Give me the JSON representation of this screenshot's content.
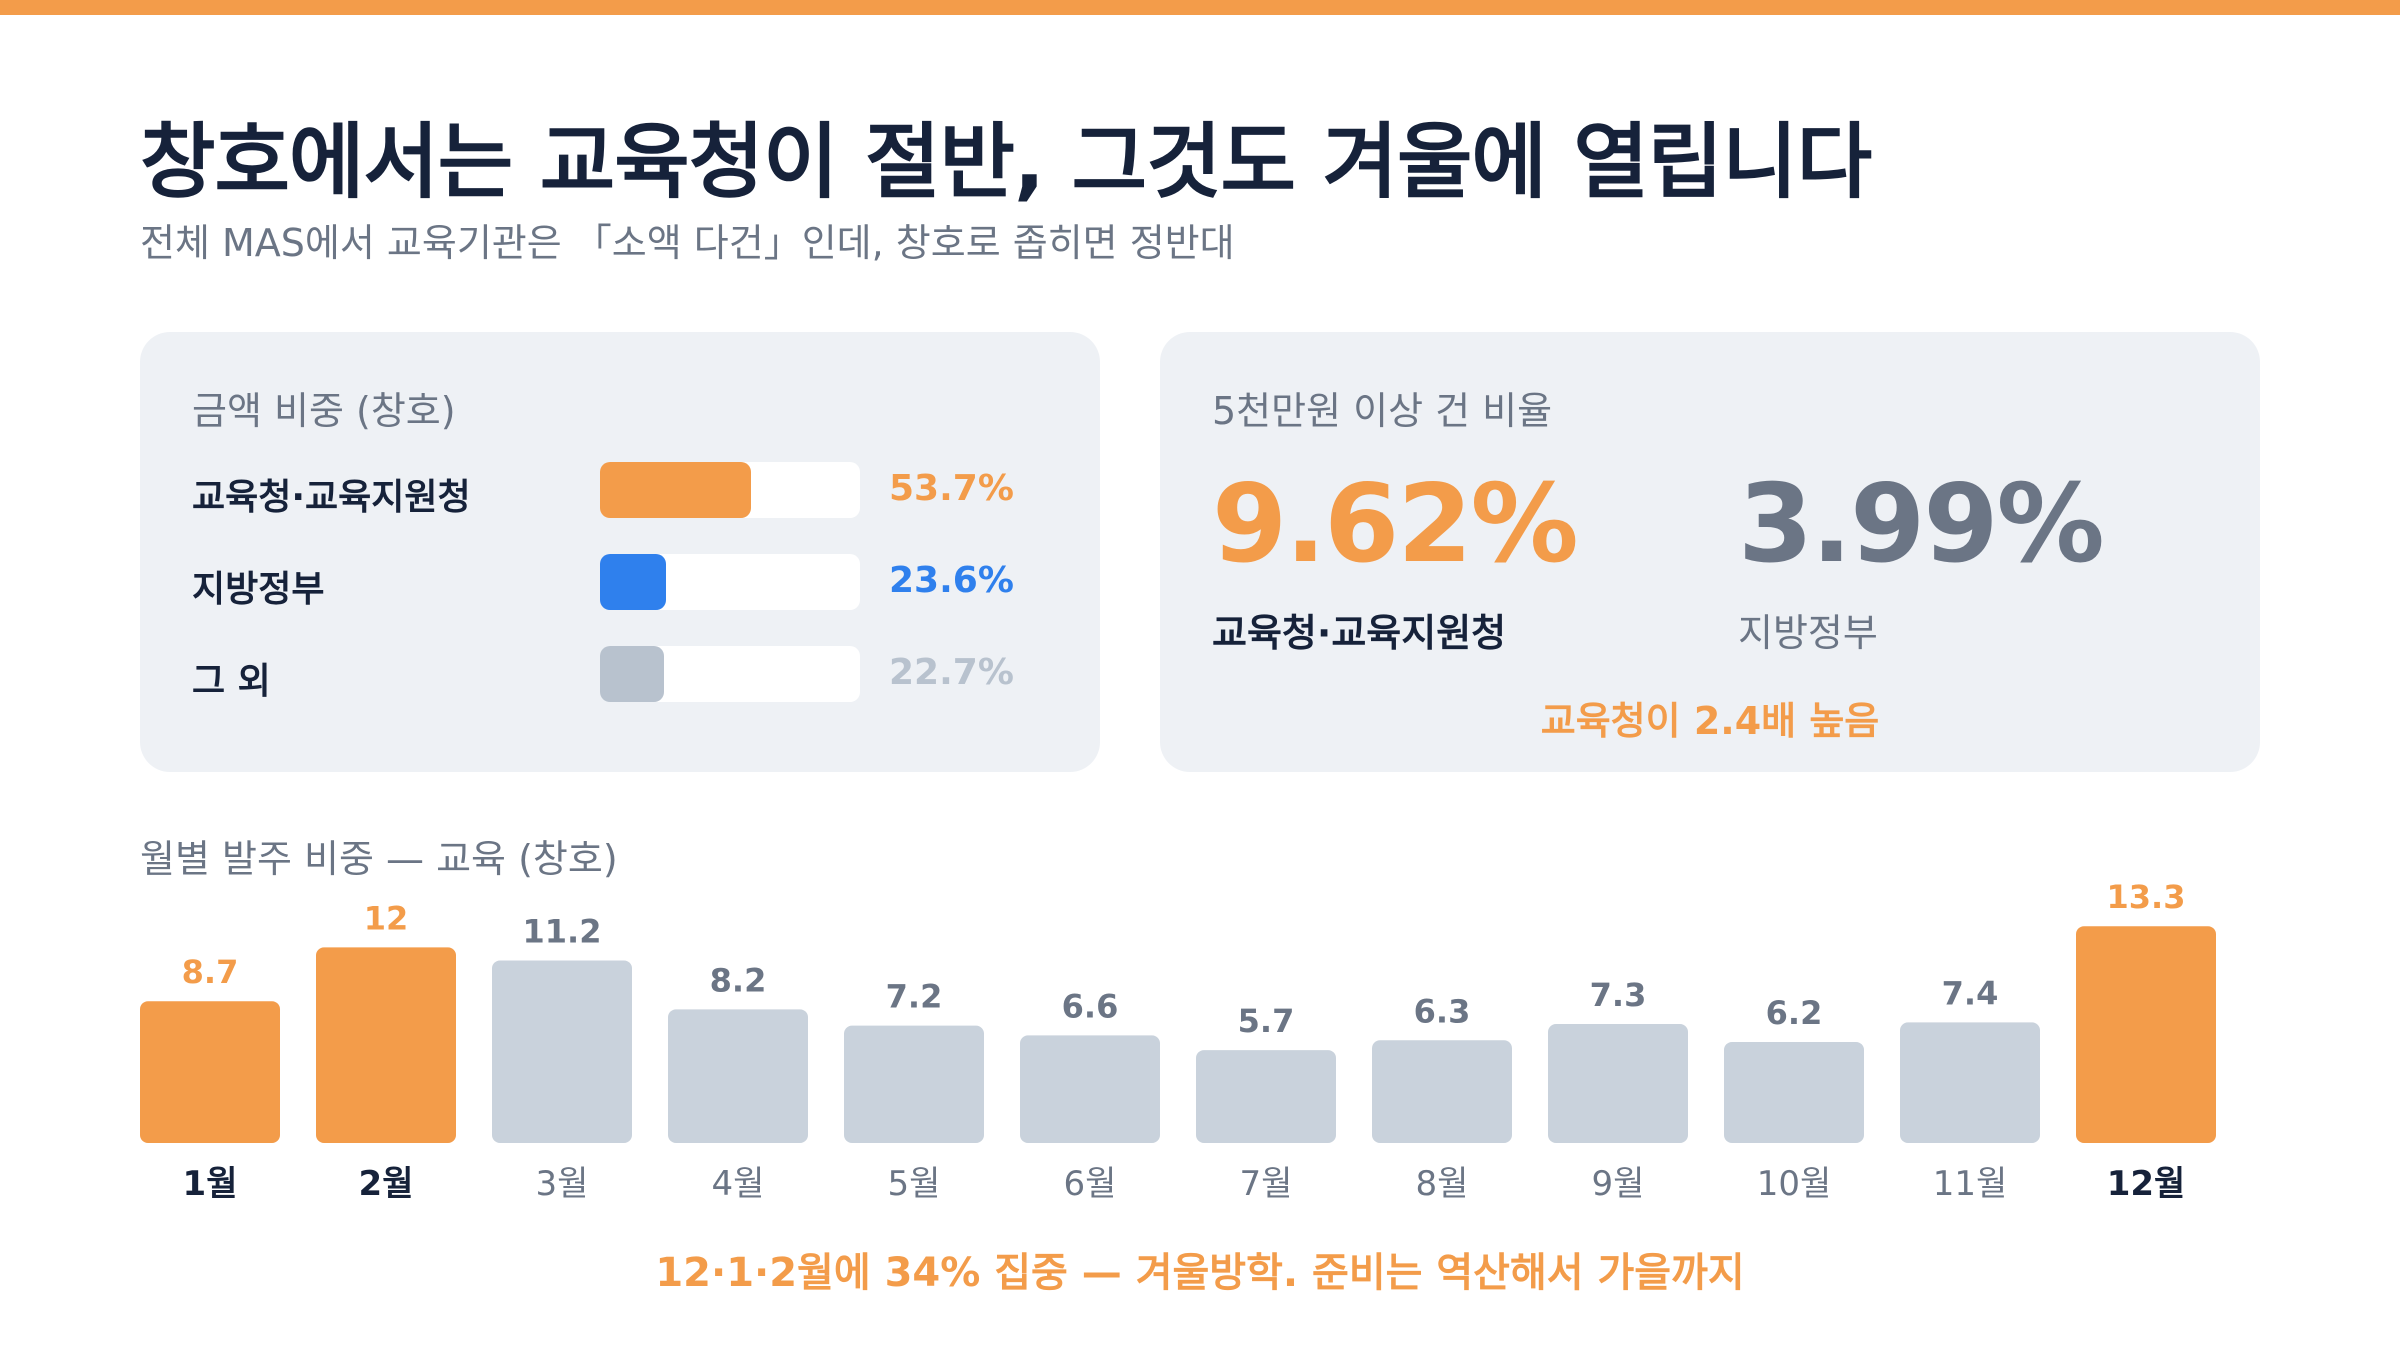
{
  "header": {
    "title": "창호에서는 교육청이 절반, 그것도 겨울에 열립니다",
    "subtitle": "전체 MAS에서 교육기관은 「소액 다건」인데, 창호로 좁히면 정반대"
  },
  "colors": {
    "accent": "#f39c4a",
    "blue": "#2f80ed",
    "gray": "#b8c2ce",
    "bar_gray": "#c9d2dc",
    "text_dark": "#16223a",
    "text_muted": "#6b7585",
    "card_bg": "#eef1f5"
  },
  "share_card": {
    "label": "금액 비중 (창호)",
    "items": [
      {
        "name": "교육청·교육지원청",
        "value_label": "53.7%",
        "fraction": 0.58,
        "color": "#f39c4a",
        "value_color": "#f39c4a"
      },
      {
        "name": "지방정부",
        "value_label": "23.6%",
        "fraction": 0.255,
        "color": "#2f80ed",
        "value_color": "#2f80ed"
      },
      {
        "name": "그 외",
        "value_label": "22.7%",
        "fraction": 0.245,
        "color": "#b8c2ce",
        "value_color": "#b8c2ce"
      }
    ]
  },
  "ratio_card": {
    "label": "5천만원 이상 건 비율",
    "edu_value": "9.62%",
    "edu_label": "교육청·교육지원청",
    "local_value": "3.99%",
    "local_label": "지방정부",
    "note": "교육청이 2.4배 높음"
  },
  "chart_data": {
    "type": "bar",
    "title": "월별 발주 비중 — 교육 (창호)",
    "categories": [
      "1월",
      "2월",
      "3월",
      "4월",
      "5월",
      "6월",
      "7월",
      "8월",
      "9월",
      "10월",
      "11월",
      "12월"
    ],
    "values": [
      8.7,
      12,
      11.2,
      8.2,
      7.2,
      6.6,
      5.7,
      6.3,
      7.3,
      6.2,
      7.4,
      13.3
    ],
    "value_labels": [
      "8.7",
      "12",
      "11.2",
      "8.2",
      "7.2",
      "6.6",
      "5.7",
      "6.3",
      "7.3",
      "6.2",
      "7.4",
      "13.3"
    ],
    "highlighted": [
      "1월",
      "2월",
      "12월"
    ],
    "highlight_color": "#f39c4a",
    "base_color": "#c9d2dc",
    "xlabel": "",
    "ylabel": "",
    "grid": false,
    "legend": false
  },
  "footer": {
    "note": "12·1·2월에 34% 집중 — 겨울방학. 준비는 역산해서 가을까지"
  }
}
